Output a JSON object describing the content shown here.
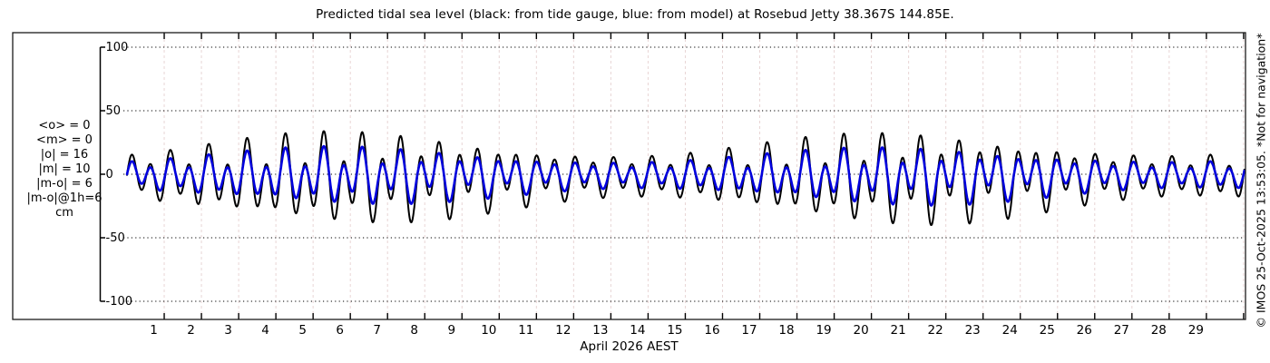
{
  "title": "Predicted tidal sea level (black: from tide gauge, blue: from model) at Rosebud Jetty 38.367S 144.85E.",
  "watermark": "© IMOS 25-Oct-2025 13:53:05. *Not for navigation*",
  "stats": {
    "lines": [
      "<o> = 0",
      "<m> = 0",
      "|o| = 16",
      "|m| = 10",
      "|m-o| = 6",
      "|m-o|@1h=6",
      "cm"
    ]
  },
  "chart_data": {
    "type": "line",
    "title": "Predicted tidal sea level (black: from tide gauge, blue: from model) at Rosebud Jetty 38.367S 144.85E.",
    "xlabel": "April 2026 AEST",
    "ylabel": "cm",
    "x_axis": {
      "tick_labels": [
        "1",
        "2",
        "3",
        "4",
        "5",
        "6",
        "7",
        "8",
        "9",
        "10",
        "11",
        "12",
        "13",
        "14",
        "15",
        "16",
        "17",
        "18",
        "19",
        "20",
        "21",
        "22",
        "23",
        "24",
        "25",
        "26",
        "27",
        "28",
        "29"
      ],
      "days_shown": 30,
      "t_start_days": 0,
      "t_end_days": 30.05
    },
    "y_axis": {
      "ticks": [
        100,
        50,
        0,
        -50,
        -100
      ],
      "lim": [
        -100,
        100
      ],
      "unit": "cm"
    },
    "grid": {
      "horizontal_color": "#000000",
      "horizontal_style": "dotted",
      "vertical_color": "#e8d5d5",
      "vertical_style": "dashed"
    },
    "legend": [
      {
        "label": "from tide gauge",
        "color": "#000000"
      },
      {
        "label": "from model",
        "color": "#0000dd"
      }
    ],
    "sampling_step_days": 0.01,
    "series": [
      {
        "name": "tide gauge (observed, black)",
        "color": "#000000",
        "width": 2,
        "synthesis": {
          "m2_period_days": 0.5175,
          "k1_period_days": 0.9973,
          "spring_neap_period_days": 14.77,
          "spring_day": 6.13,
          "m2_amp_mean_cm": 19,
          "m2_amp_mod_cm": 6.5,
          "k1_amp_mean_cm": 9,
          "k1_amp_mod_cm": 4.5,
          "m2_phase_rad": 0.1,
          "k1_phase_rad": 0.0,
          "offset_factor": -0.14
        }
      },
      {
        "name": "model (blue)",
        "color": "#0000dd",
        "width": 2.6,
        "synthesis": {
          "m2_period_days": 0.5175,
          "k1_period_days": 0.9973,
          "spring_neap_period_days": 14.77,
          "spring_day": 6.13,
          "m2_amp_mean_cm": 12,
          "m2_amp_mod_cm": 4.1,
          "k1_amp_mean_cm": 5.7,
          "k1_amp_mod_cm": 2.8,
          "m2_phase_rad": 0.1,
          "k1_phase_rad": 0.0,
          "offset_factor": -0.1
        }
      }
    ],
    "stats_annotation": [
      "<o> = 0",
      "<m> = 0",
      "|o| = 16",
      "|m| = 10",
      "|m-o| = 6",
      "|m-o|@1h=6",
      "cm"
    ]
  }
}
